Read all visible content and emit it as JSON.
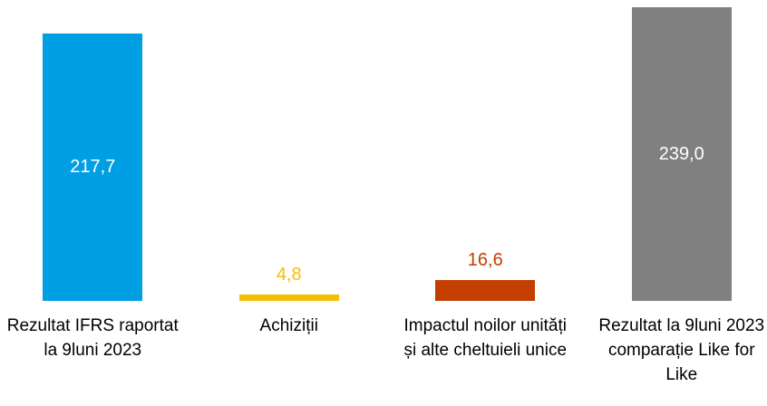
{
  "chart_data": {
    "type": "bar",
    "categories": [
      "Rezultat IFRS raportat la 9luni 2023",
      "Achiziții",
      "Impactul noilor unități și alte cheltuieli unice",
      "Rezultat la 9luni 2023 comparație Like for Like"
    ],
    "values": [
      217.7,
      4.8,
      16.6,
      239.0
    ],
    "value_labels": [
      "217,7",
      "4,8",
      "16,6",
      "239,0"
    ],
    "colors": [
      "#009fe3",
      "#f6be00",
      "#c43e00",
      "#808080"
    ],
    "grid": false
  }
}
